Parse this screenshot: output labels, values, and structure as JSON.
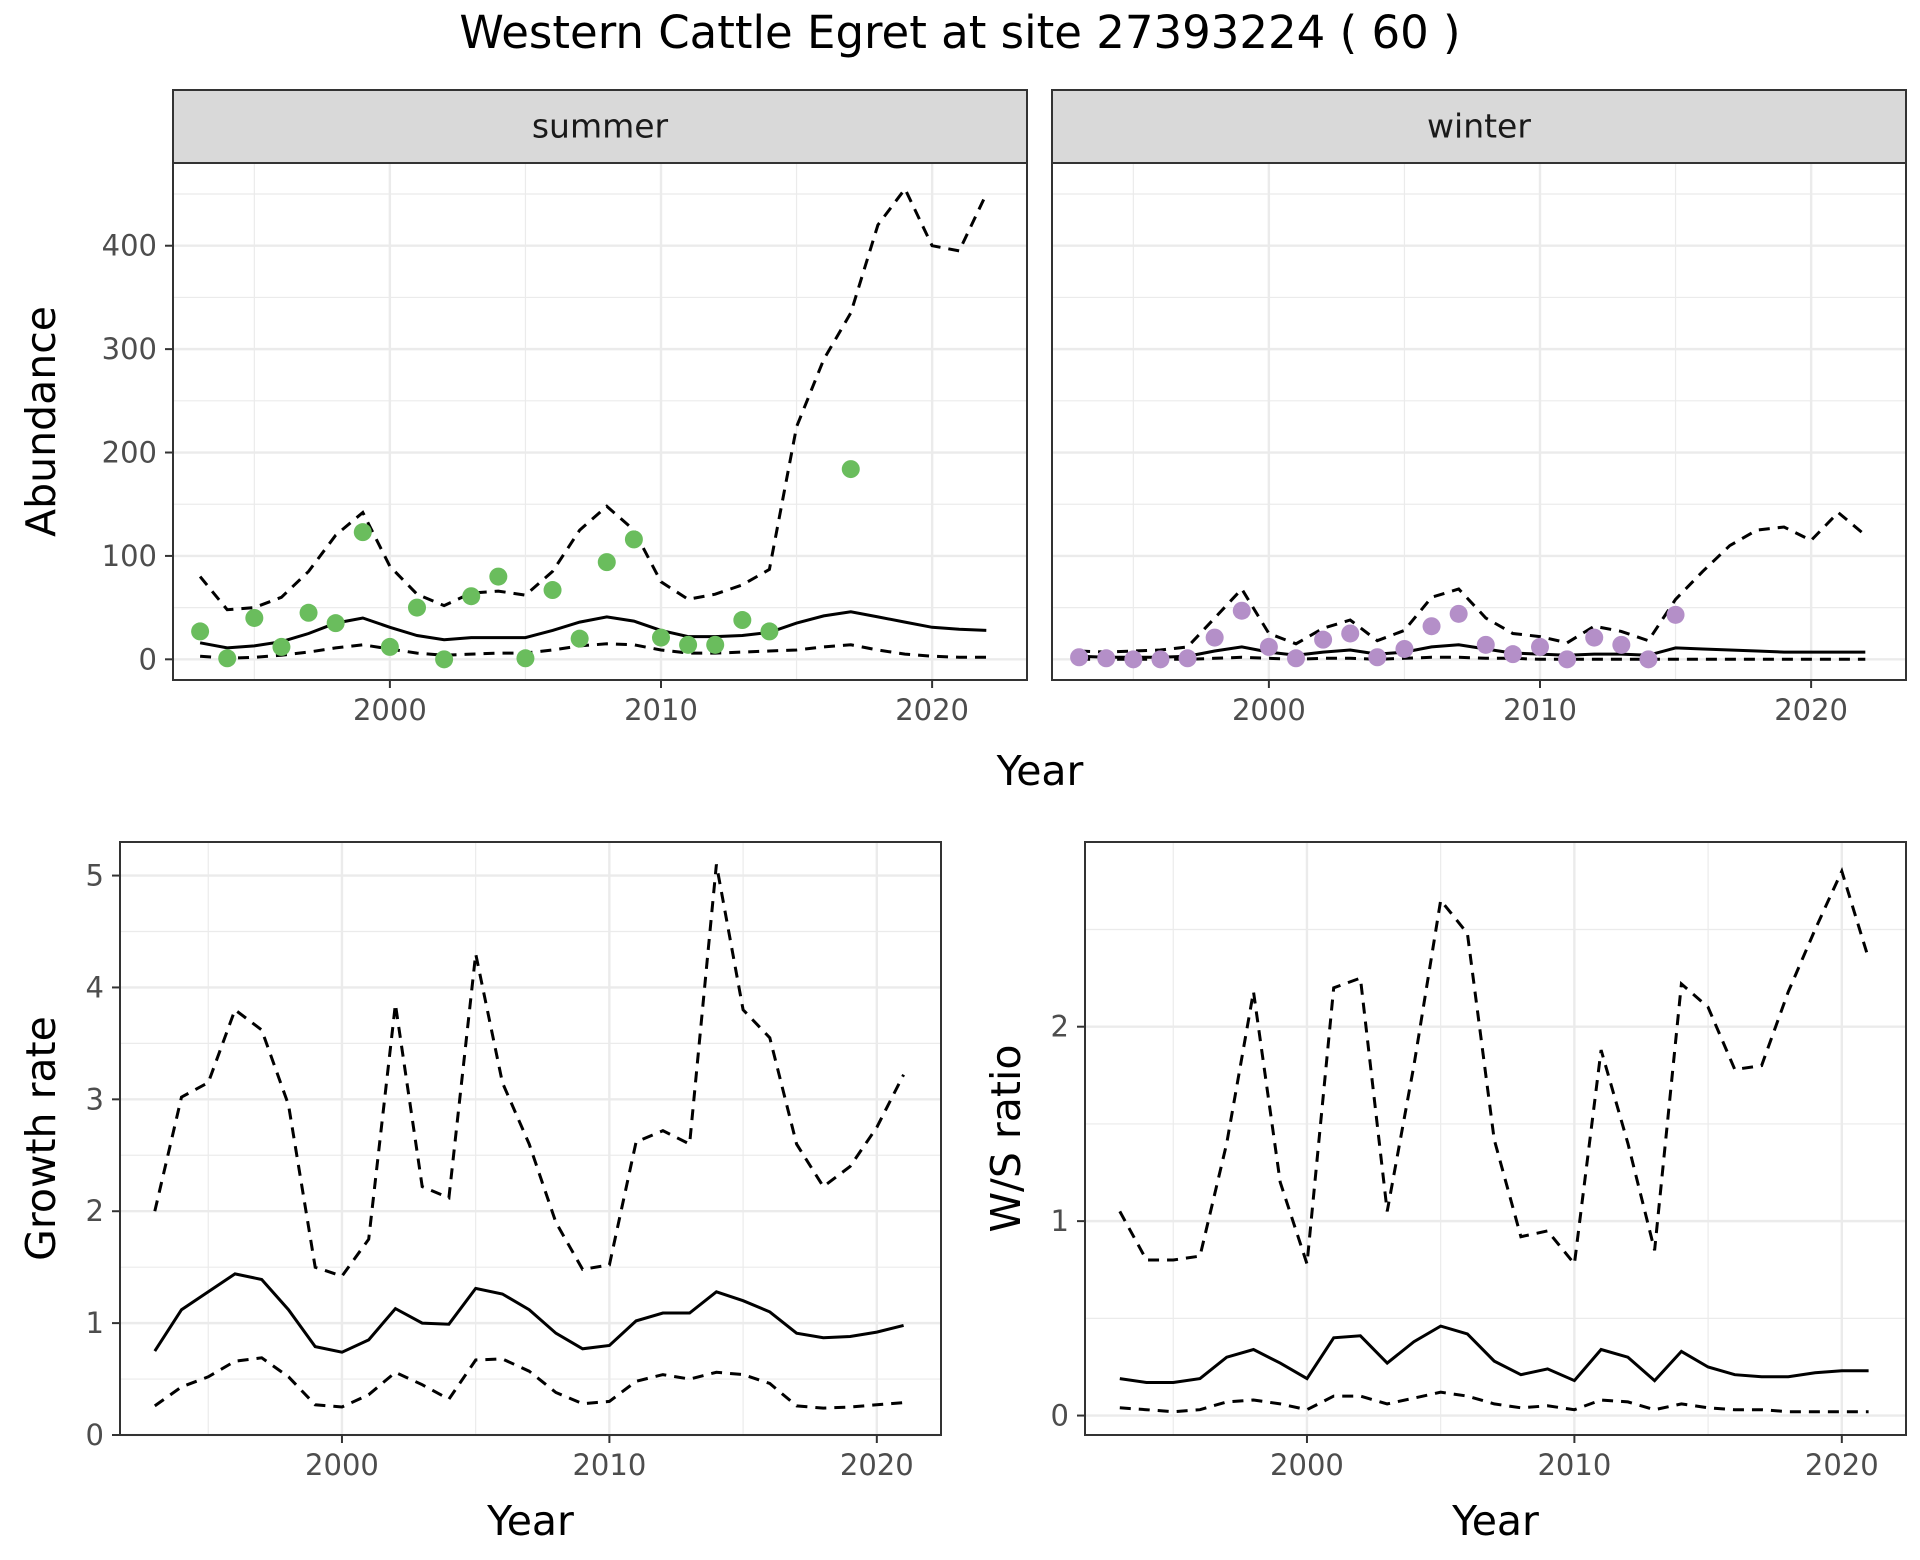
{
  "title": "Western Cattle Egret at site 27393224 ( 60 )",
  "colors": {
    "summer_points": "#6abd5d",
    "winter_points": "#b48fc8",
    "lines": "#000000",
    "strip_fill": "#d9d9d9",
    "grid": "#ebebeb"
  },
  "chart_data": [
    {
      "type": "line",
      "panel": "summer",
      "xlabel": "Year",
      "ylabel": "Abundance",
      "xlim": [
        1992,
        2023.5
      ],
      "ylim": [
        -20,
        480
      ],
      "x_ticks": [
        2000,
        2010,
        2020
      ],
      "y_ticks": [
        0,
        100,
        200,
        300,
        400
      ],
      "grid": true,
      "x": [
        1993,
        1994,
        1995,
        1996,
        1997,
        1998,
        1999,
        2000,
        2001,
        2002,
        2003,
        2004,
        2005,
        2006,
        2007,
        2008,
        2009,
        2010,
        2011,
        2012,
        2013,
        2014,
        2015,
        2016,
        2017,
        2018,
        2019,
        2020,
        2021,
        2022
      ],
      "estimate": [
        16,
        11,
        13,
        17,
        25,
        35,
        40,
        31,
        23,
        19,
        21,
        21,
        21,
        28,
        36,
        41,
        37,
        28,
        22,
        22,
        23,
        26,
        35,
        42,
        46,
        41,
        36,
        31,
        29,
        28
      ],
      "lower": [
        3,
        1,
        2,
        4,
        7,
        11,
        14,
        10,
        6,
        4,
        5,
        6,
        6,
        9,
        13,
        15,
        14,
        9,
        6,
        6,
        7,
        8,
        9,
        12,
        14,
        9,
        5,
        3,
        2,
        2
      ],
      "upper": [
        80,
        48,
        50,
        60,
        85,
        120,
        142,
        90,
        63,
        52,
        64,
        66,
        62,
        85,
        125,
        148,
        125,
        75,
        58,
        63,
        72,
        87,
        225,
        290,
        335,
        420,
        455,
        400,
        395,
        450
      ],
      "observed_x": [
        1993,
        1994,
        1995,
        1996,
        1997,
        1998,
        1999,
        2000,
        2001,
        2002,
        2003,
        2004,
        2005,
        2006,
        2007,
        2008,
        2009,
        2010,
        2011,
        2012,
        2013,
        2014,
        2017
      ],
      "observed_y": [
        27,
        1,
        40,
        12,
        45,
        35,
        123,
        12,
        50,
        0,
        61,
        80,
        1,
        67,
        20,
        94,
        116,
        21,
        14,
        14,
        38,
        27,
        184
      ]
    },
    {
      "type": "line",
      "panel": "winter",
      "xlabel": "Year",
      "ylabel": "Abundance",
      "xlim": [
        1992,
        2023.5
      ],
      "ylim": [
        -20,
        480
      ],
      "x_ticks": [
        2000,
        2010,
        2020
      ],
      "y_ticks": [
        0,
        100,
        200,
        300,
        400
      ],
      "grid": true,
      "x": [
        1993,
        1994,
        1995,
        1996,
        1997,
        1998,
        1999,
        2000,
        2001,
        2002,
        2003,
        2004,
        2005,
        2006,
        2007,
        2008,
        2009,
        2010,
        2011,
        2012,
        2013,
        2014,
        2015,
        2016,
        2017,
        2018,
        2019,
        2020,
        2021,
        2022
      ],
      "estimate": [
        3,
        2,
        2,
        2,
        3,
        8,
        12,
        7,
        4,
        7,
        9,
        5,
        7,
        12,
        14,
        10,
        6,
        5,
        4,
        5,
        5,
        4,
        11,
        10,
        9,
        8,
        7,
        7,
        7,
        7
      ],
      "lower": [
        0,
        0,
        0,
        0,
        0,
        1,
        2,
        1,
        0,
        1,
        1,
        0,
        1,
        2,
        2,
        1,
        1,
        0,
        0,
        0,
        0,
        0,
        0,
        0,
        0,
        0,
        0,
        0,
        0,
        0
      ],
      "upper": [
        8,
        7,
        8,
        9,
        12,
        40,
        68,
        25,
        15,
        30,
        38,
        18,
        28,
        60,
        68,
        40,
        25,
        22,
        16,
        32,
        27,
        18,
        58,
        85,
        110,
        125,
        128,
        115,
        142,
        120
      ],
      "observed_x": [
        1993,
        1994,
        1995,
        1996,
        1997,
        1998,
        1999,
        2000,
        2001,
        2002,
        2003,
        2004,
        2005,
        2006,
        2007,
        2008,
        2009,
        2010,
        2011,
        2012,
        2013,
        2014,
        2015
      ],
      "observed_y": [
        2,
        1,
        0,
        0,
        1,
        21,
        47,
        12,
        1,
        19,
        25,
        2,
        10,
        32,
        44,
        14,
        5,
        12,
        0,
        21,
        14,
        0,
        43
      ]
    },
    {
      "type": "line",
      "panel": "growth",
      "xlabel": "Year",
      "ylabel": "Growth rate",
      "xlim": [
        1991.7,
        2022.4
      ],
      "ylim": [
        0,
        5.3
      ],
      "x_ticks": [
        2000,
        2010,
        2020
      ],
      "y_ticks": [
        0,
        1,
        2,
        3,
        4,
        5
      ],
      "grid": true,
      "x": [
        1993,
        1994,
        1995,
        1996,
        1997,
        1998,
        1999,
        2000,
        2001,
        2002,
        2003,
        2004,
        2005,
        2006,
        2007,
        2008,
        2009,
        2010,
        2011,
        2012,
        2013,
        2014,
        2015,
        2016,
        2017,
        2018,
        2019,
        2020,
        2021
      ],
      "estimate": [
        0.75,
        1.12,
        1.28,
        1.44,
        1.39,
        1.12,
        0.79,
        0.74,
        0.85,
        1.13,
        1.0,
        0.99,
        1.31,
        1.26,
        1.12,
        0.91,
        0.77,
        0.8,
        1.02,
        1.09,
        1.09,
        1.28,
        1.2,
        1.1,
        0.91,
        0.87,
        0.88,
        0.92,
        0.98
      ],
      "lower": [
        0.26,
        0.43,
        0.52,
        0.66,
        0.69,
        0.52,
        0.27,
        0.25,
        0.36,
        0.56,
        0.45,
        0.32,
        0.67,
        0.68,
        0.57,
        0.38,
        0.28,
        0.3,
        0.48,
        0.54,
        0.5,
        0.56,
        0.54,
        0.46,
        0.26,
        0.24,
        0.25,
        0.27,
        0.29
      ],
      "upper": [
        2.0,
        3.02,
        3.15,
        3.8,
        3.62,
        2.95,
        1.5,
        1.42,
        1.75,
        3.85,
        2.22,
        2.12,
        4.3,
        3.15,
        2.6,
        1.9,
        1.48,
        1.52,
        2.62,
        2.72,
        2.6,
        5.1,
        3.8,
        3.55,
        2.6,
        2.22,
        2.4,
        2.75,
        3.22
      ]
    },
    {
      "type": "line",
      "panel": "ratio",
      "xlabel": "Year",
      "ylabel": "W/S ratio",
      "xlim": [
        1991.7,
        2022.4
      ],
      "ylim": [
        -0.1,
        2.95
      ],
      "x_ticks": [
        2000,
        2010,
        2020
      ],
      "y_ticks": [
        0,
        1,
        2
      ],
      "grid": true,
      "x": [
        1993,
        1994,
        1995,
        1996,
        1997,
        1998,
        1999,
        2000,
        2001,
        2002,
        2003,
        2004,
        2005,
        2006,
        2007,
        2008,
        2009,
        2010,
        2011,
        2012,
        2013,
        2014,
        2015,
        2016,
        2017,
        2018,
        2019,
        2020,
        2021
      ],
      "estimate": [
        0.19,
        0.17,
        0.17,
        0.19,
        0.3,
        0.34,
        0.27,
        0.19,
        0.4,
        0.41,
        0.27,
        0.38,
        0.46,
        0.42,
        0.28,
        0.21,
        0.24,
        0.18,
        0.34,
        0.3,
        0.18,
        0.33,
        0.25,
        0.21,
        0.2,
        0.2,
        0.22,
        0.23,
        0.23
      ],
      "lower": [
        0.04,
        0.03,
        0.02,
        0.03,
        0.07,
        0.08,
        0.06,
        0.03,
        0.1,
        0.1,
        0.06,
        0.09,
        0.12,
        0.1,
        0.06,
        0.04,
        0.05,
        0.03,
        0.08,
        0.07,
        0.03,
        0.06,
        0.04,
        0.03,
        0.03,
        0.02,
        0.02,
        0.02,
        0.02
      ],
      "upper": [
        1.05,
        0.8,
        0.8,
        0.82,
        1.4,
        2.18,
        1.2,
        0.78,
        2.2,
        2.25,
        1.05,
        1.8,
        2.65,
        2.48,
        1.42,
        0.92,
        0.95,
        0.78,
        1.88,
        1.4,
        0.85,
        2.22,
        2.1,
        1.78,
        1.8,
        2.18,
        2.5,
        2.8,
        2.35
      ]
    }
  ]
}
